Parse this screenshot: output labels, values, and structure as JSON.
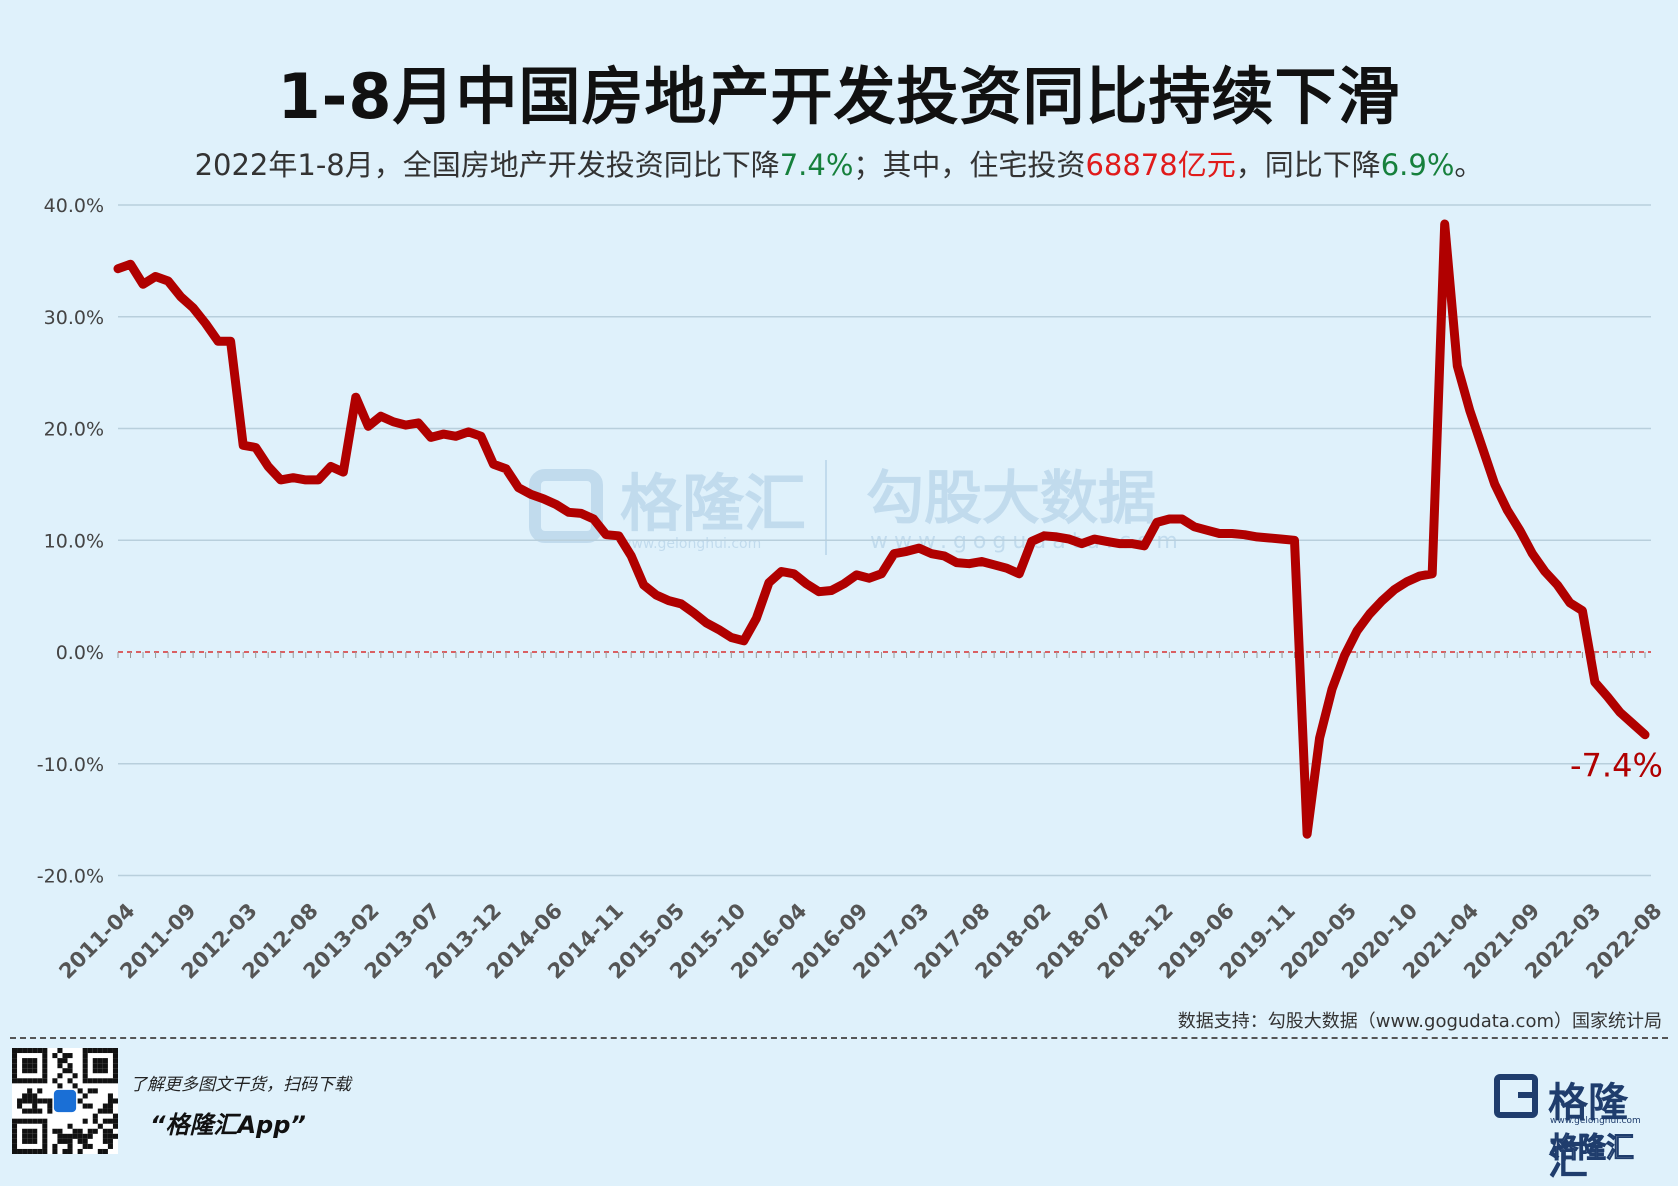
{
  "title": "1-8月中国房地产开发投资同比持续下滑",
  "subtitle": {
    "p1": "2022年1-8月，全国房地产开发投资同比下降",
    "v1": "7.4%",
    "p2": "；其中，住宅投资",
    "v2": "68878亿元",
    "p3": "，同比下降",
    "v3": "6.9%",
    "p4": "。"
  },
  "source": "数据支持：勾股大数据（www.gogudata.com）国家统计局",
  "promo": {
    "line1": "了解更多图文干货，扫码下载",
    "line2": "“格隆汇App”"
  },
  "logo": {
    "name": "格隆汇",
    "url": "www.gelonghui.com",
    "name_sub": "格隆汇"
  },
  "watermark": {
    "brand": "格隆汇",
    "brand_url": "www.gelonghui.com",
    "data": "勾股大数据",
    "data_url": "www.gogudata.com"
  },
  "colors": {
    "line": "#b00000",
    "background": "#dff1fb",
    "zero_line": "#d83030",
    "grid": "#b8cfdc",
    "green": "#16803c",
    "red": "#e01b1b"
  },
  "chart_data": {
    "type": "line",
    "series": [
      {
        "values": [
          34.3,
          34.7,
          32.9,
          33.6,
          33.2,
          31.8,
          30.8,
          29.4,
          27.8,
          27.8,
          18.5,
          18.3,
          16.6,
          15.4,
          15.6,
          15.4,
          15.4,
          16.6,
          16.1,
          22.8,
          20.2,
          21.1,
          20.6,
          20.3,
          20.5,
          19.2,
          19.5,
          19.3,
          19.7,
          19.3,
          16.8,
          16.4,
          14.7,
          14.1,
          13.7,
          13.2,
          12.5,
          12.4,
          11.9,
          10.5,
          10.4,
          8.6,
          6.0,
          5.1,
          4.6,
          4.3,
          3.5,
          2.6,
          2.0,
          1.3,
          1.0,
          3.0,
          6.2,
          7.2,
          7.0,
          6.1,
          5.4,
          5.5,
          6.1,
          6.9,
          6.6,
          7.0,
          8.8,
          9.0,
          9.3,
          8.8,
          8.6,
          8.0,
          7.9,
          8.1,
          7.8,
          7.5,
          7.0,
          9.9,
          10.4,
          10.3,
          10.1,
          9.7,
          10.1,
          9.9,
          9.7,
          9.7,
          9.5,
          11.6,
          11.9,
          11.9,
          11.2,
          10.9,
          10.6,
          10.6,
          10.5,
          10.3,
          10.2,
          10.1,
          10.0,
          -16.3,
          -7.7,
          -3.3,
          -0.3,
          1.9,
          3.4,
          4.6,
          5.6,
          6.3,
          6.8,
          7.0,
          38.3,
          25.6,
          21.6,
          18.3,
          15.0,
          12.7,
          10.9,
          8.8,
          7.2,
          6.0,
          4.4,
          3.7,
          -2.7,
          -4.0,
          -5.4,
          -6.4,
          -7.4
        ]
      }
    ],
    "x_tick_labels": [
      "2011-04",
      "2011-09",
      "2012-03",
      "2012-08",
      "2013-02",
      "2013-07",
      "2013-12",
      "2014-06",
      "2014-11",
      "2015-05",
      "2015-10",
      "2016-04",
      "2016-09",
      "2017-03",
      "2017-08",
      "2018-02",
      "2018-07",
      "2018-12",
      "2019-06",
      "2019-11",
      "2020-05",
      "2020-10",
      "2021-04",
      "2021-09",
      "2022-03",
      "2022-08"
    ],
    "y_tick_labels": [
      "40.0%",
      "30.0%",
      "20.0%",
      "10.0%",
      "0.0%",
      "-10.0%",
      "-20.0%"
    ],
    "ylim": [
      -20,
      40
    ],
    "annotation": "-7.4%",
    "grid": true
  }
}
